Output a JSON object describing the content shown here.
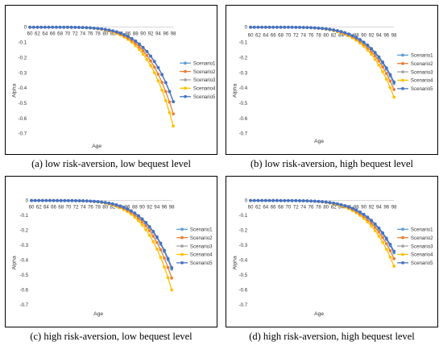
{
  "captions": [
    "(a) low risk-aversion, low bequest level",
    "(b) low risk-aversion, high bequest level",
    "(c) high risk-aversion, low bequest level",
    "(d) high risk-aversion, high bequest level"
  ],
  "colors": [
    "#5B9BD5",
    "#ED7D31",
    "#A5A5A5",
    "#FFC000",
    "#4472C4"
  ],
  "chart_data": [
    {
      "type": "line",
      "xlabel": "Age",
      "ylabel": "Alpha",
      "xticks": [
        "60",
        "62",
        "64",
        "66",
        "68",
        "70",
        "72",
        "74",
        "76",
        "78",
        "80",
        "82",
        "84",
        "86",
        "88",
        "90",
        "92",
        "94",
        "96",
        "98"
      ],
      "yticks": [
        "0",
        "-0.1",
        "-0.2",
        "-0.3",
        "-0.4",
        "-0.5",
        "-0.6",
        "-0.7"
      ],
      "ylim": [
        -0.75,
        0.0
      ],
      "x_range": [
        60,
        98
      ],
      "legend_position": "right",
      "series": [
        {
          "name": "Scenario1",
          "end_value": -0.49
        },
        {
          "name": "Scenario2",
          "end_value": -0.57
        },
        {
          "name": "Scenario3",
          "end_value": -0.49
        },
        {
          "name": "Scenario4",
          "end_value": -0.65
        },
        {
          "name": "Scenario5",
          "end_value": -0.49
        }
      ]
    },
    {
      "type": "line",
      "xlabel": "Age",
      "ylabel": "Alpha",
      "xticks": [
        "60",
        "62",
        "64",
        "66",
        "68",
        "70",
        "72",
        "74",
        "76",
        "78",
        "80",
        "82",
        "84",
        "86",
        "88",
        "90",
        "92",
        "94",
        "96",
        "98"
      ],
      "yticks": [
        "0",
        "-0.1",
        "-0.2",
        "-0.3",
        "-0.4",
        "-0.5",
        "-0.6",
        "-0.7"
      ],
      "ylim": [
        -0.75,
        0.0
      ],
      "x_range": [
        60,
        98
      ],
      "legend_position": "right",
      "series": [
        {
          "name": "Scenario1",
          "end_value": -0.37
        },
        {
          "name": "Scenario2",
          "end_value": -0.41
        },
        {
          "name": "Scenario3",
          "end_value": -0.37
        },
        {
          "name": "Scenario4",
          "end_value": -0.46
        },
        {
          "name": "Scenario5",
          "end_value": -0.36
        }
      ]
    },
    {
      "type": "line",
      "xlabel": "Age",
      "ylabel": "Alpha",
      "xticks": [
        "60",
        "62",
        "64",
        "66",
        "68",
        "70",
        "72",
        "74",
        "76",
        "78",
        "80",
        "82",
        "84",
        "86",
        "88",
        "90",
        "92",
        "94",
        "96",
        "98"
      ],
      "yticks": [
        "0",
        "-0.1",
        "-0.2",
        "-0.3",
        "-0.4",
        "-0.5",
        "-0.6",
        "-0.7"
      ],
      "ylim": [
        -0.75,
        0.0
      ],
      "x_range": [
        60,
        98
      ],
      "legend_position": "right",
      "series": [
        {
          "name": "Scenario1",
          "end_value": -0.46
        },
        {
          "name": "Scenario2",
          "end_value": -0.52
        },
        {
          "name": "Scenario3",
          "end_value": -0.46
        },
        {
          "name": "Scenario4",
          "end_value": -0.6
        },
        {
          "name": "Scenario5",
          "end_value": -0.45
        }
      ]
    },
    {
      "type": "line",
      "xlabel": "Age",
      "ylabel": "Alpha",
      "xticks": [
        "60",
        "62",
        "64",
        "66",
        "68",
        "70",
        "72",
        "74",
        "76",
        "78",
        "80",
        "82",
        "84",
        "86",
        "88",
        "90",
        "92",
        "94",
        "96",
        "98"
      ],
      "yticks": [
        "0",
        "-0.1",
        "-0.2",
        "-0.3",
        "-0.4",
        "-0.5",
        "-0.6",
        "-0.7"
      ],
      "ylim": [
        -0.75,
        0.0
      ],
      "x_range": [
        60,
        98
      ],
      "legend_position": "right",
      "series": [
        {
          "name": "Scenario1",
          "end_value": -0.35
        },
        {
          "name": "Scenario2",
          "end_value": -0.39
        },
        {
          "name": "Scenario3",
          "end_value": -0.35
        },
        {
          "name": "Scenario4",
          "end_value": -0.44
        },
        {
          "name": "Scenario5",
          "end_value": -0.34
        }
      ]
    }
  ]
}
